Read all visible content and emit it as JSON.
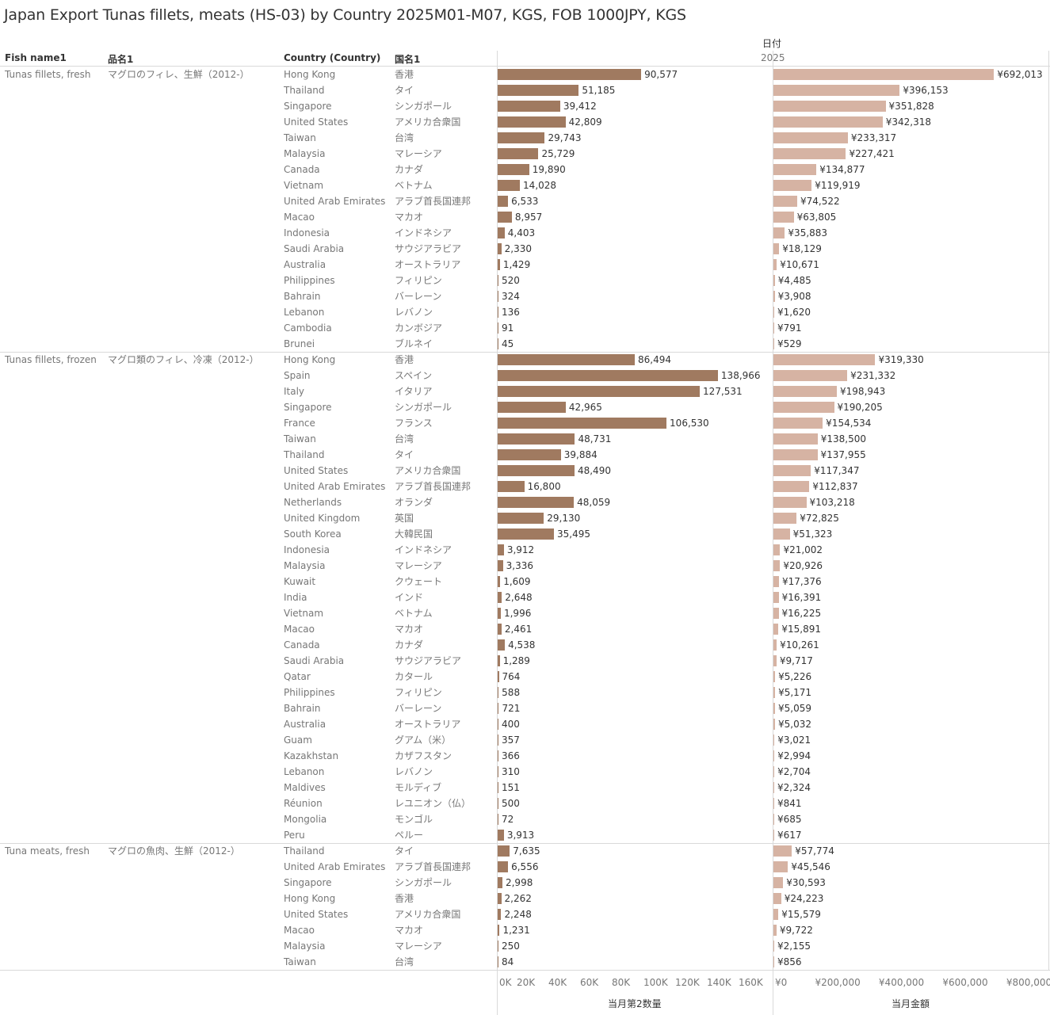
{
  "title": "Japan Export Tunas fillets, meats (HS-03) by Country 2025M01-M07, KGS, FOB 1000JPY, KGS",
  "headers": {
    "fish_name": "Fish name1",
    "item_name": "品名1",
    "country": "Country (Country)",
    "country_jp": "国名1",
    "date": "日付",
    "year": "2025"
  },
  "chart_data": {
    "type": "bar",
    "orientation": "horizontal",
    "grid": false,
    "quantity_axis": {
      "title": "当月第2数量",
      "range": [
        0,
        172000
      ],
      "ticks": [
        0,
        20000,
        40000,
        60000,
        80000,
        100000,
        120000,
        140000,
        160000
      ],
      "tick_labels": [
        "0K",
        "20K",
        "40K",
        "60K",
        "80K",
        "100K",
        "120K",
        "140K",
        "160K"
      ]
    },
    "value_axis": {
      "title": "当月金額",
      "range": [
        0,
        860000
      ],
      "ticks": [
        0,
        200000,
        400000,
        600000,
        800000
      ],
      "tick_labels": [
        "¥0",
        "¥200,000",
        "¥400,000",
        "¥600,000",
        "¥800,000"
      ]
    },
    "groups": [
      {
        "fish_name": "Tunas fillets, fresh",
        "item_name": "マグロのフィレ、生鮮（2012-）",
        "rows": [
          {
            "country": "Hong Kong",
            "country_jp": "香港",
            "quantity": 90577,
            "value": 692013
          },
          {
            "country": "Thailand",
            "country_jp": "タイ",
            "quantity": 51185,
            "value": 396153
          },
          {
            "country": "Singapore",
            "country_jp": "シンガポール",
            "quantity": 39412,
            "value": 351828
          },
          {
            "country": "United States",
            "country_jp": "アメリカ合衆国",
            "quantity": 42809,
            "value": 342318
          },
          {
            "country": "Taiwan",
            "country_jp": "台湾",
            "quantity": 29743,
            "value": 233317
          },
          {
            "country": "Malaysia",
            "country_jp": "マレーシア",
            "quantity": 25729,
            "value": 227421
          },
          {
            "country": "Canada",
            "country_jp": "カナダ",
            "quantity": 19890,
            "value": 134877
          },
          {
            "country": "Vietnam",
            "country_jp": "ベトナム",
            "quantity": 14028,
            "value": 119919
          },
          {
            "country": "United Arab Emirates",
            "country_jp": "アラブ首長国連邦",
            "quantity": 6533,
            "value": 74522
          },
          {
            "country": "Macao",
            "country_jp": "マカオ",
            "quantity": 8957,
            "value": 63805
          },
          {
            "country": "Indonesia",
            "country_jp": "インドネシア",
            "quantity": 4403,
            "value": 35883
          },
          {
            "country": "Saudi Arabia",
            "country_jp": "サウジアラビア",
            "quantity": 2330,
            "value": 18129
          },
          {
            "country": "Australia",
            "country_jp": "オーストラリア",
            "quantity": 1429,
            "value": 10671
          },
          {
            "country": "Philippines",
            "country_jp": "フィリピン",
            "quantity": 520,
            "value": 4485
          },
          {
            "country": "Bahrain",
            "country_jp": "バーレーン",
            "quantity": 324,
            "value": 3908
          },
          {
            "country": "Lebanon",
            "country_jp": "レバノン",
            "quantity": 136,
            "value": 1620
          },
          {
            "country": "Cambodia",
            "country_jp": "カンボジア",
            "quantity": 91,
            "value": 791
          },
          {
            "country": "Brunei",
            "country_jp": "ブルネイ",
            "quantity": 45,
            "value": 529
          }
        ]
      },
      {
        "fish_name": "Tunas fillets, frozen",
        "item_name": "マグロ類のフィレ、冷凍（2012-）",
        "rows": [
          {
            "country": "Hong Kong",
            "country_jp": "香港",
            "quantity": 86494,
            "value": 319330
          },
          {
            "country": "Spain",
            "country_jp": "スペイン",
            "quantity": 138966,
            "value": 231332
          },
          {
            "country": "Italy",
            "country_jp": "イタリア",
            "quantity": 127531,
            "value": 198943
          },
          {
            "country": "Singapore",
            "country_jp": "シンガポール",
            "quantity": 42965,
            "value": 190205
          },
          {
            "country": "France",
            "country_jp": "フランス",
            "quantity": 106530,
            "value": 154534
          },
          {
            "country": "Taiwan",
            "country_jp": "台湾",
            "quantity": 48731,
            "value": 138500
          },
          {
            "country": "Thailand",
            "country_jp": "タイ",
            "quantity": 39884,
            "value": 137955
          },
          {
            "country": "United States",
            "country_jp": "アメリカ合衆国",
            "quantity": 48490,
            "value": 117347
          },
          {
            "country": "United Arab Emirates",
            "country_jp": "アラブ首長国連邦",
            "quantity": 16800,
            "value": 112837
          },
          {
            "country": "Netherlands",
            "country_jp": "オランダ",
            "quantity": 48059,
            "value": 103218
          },
          {
            "country": "United Kingdom",
            "country_jp": "英国",
            "quantity": 29130,
            "value": 72825
          },
          {
            "country": "South Korea",
            "country_jp": "大韓民国",
            "quantity": 35495,
            "value": 51323
          },
          {
            "country": "Indonesia",
            "country_jp": "インドネシア",
            "quantity": 3912,
            "value": 21002
          },
          {
            "country": "Malaysia",
            "country_jp": "マレーシア",
            "quantity": 3336,
            "value": 20926
          },
          {
            "country": "Kuwait",
            "country_jp": "クウェート",
            "quantity": 1609,
            "value": 17376
          },
          {
            "country": "India",
            "country_jp": "インド",
            "quantity": 2648,
            "value": 16391
          },
          {
            "country": "Vietnam",
            "country_jp": "ベトナム",
            "quantity": 1996,
            "value": 16225
          },
          {
            "country": "Macao",
            "country_jp": "マカオ",
            "quantity": 2461,
            "value": 15891
          },
          {
            "country": "Canada",
            "country_jp": "カナダ",
            "quantity": 4538,
            "value": 10261
          },
          {
            "country": "Saudi Arabia",
            "country_jp": "サウジアラビア",
            "quantity": 1289,
            "value": 9717
          },
          {
            "country": "Qatar",
            "country_jp": "カタール",
            "quantity": 764,
            "value": 5226
          },
          {
            "country": "Philippines",
            "country_jp": "フィリピン",
            "quantity": 588,
            "value": 5171
          },
          {
            "country": "Bahrain",
            "country_jp": "バーレーン",
            "quantity": 721,
            "value": 5059
          },
          {
            "country": "Australia",
            "country_jp": "オーストラリア",
            "quantity": 400,
            "value": 5032
          },
          {
            "country": "Guam",
            "country_jp": "グアム（米）",
            "quantity": 357,
            "value": 3021
          },
          {
            "country": "Kazakhstan",
            "country_jp": "カザフスタン",
            "quantity": 366,
            "value": 2994
          },
          {
            "country": "Lebanon",
            "country_jp": "レバノン",
            "quantity": 310,
            "value": 2704
          },
          {
            "country": "Maldives",
            "country_jp": "モルディブ",
            "quantity": 151,
            "value": 2324
          },
          {
            "country": "Réunion",
            "country_jp": "レユニオン（仏）",
            "quantity": 500,
            "value": 841
          },
          {
            "country": "Mongolia",
            "country_jp": "モンゴル",
            "quantity": 72,
            "value": 685
          },
          {
            "country": "Peru",
            "country_jp": "ペルー",
            "quantity": 3913,
            "value": 617
          }
        ]
      },
      {
        "fish_name": "Tuna meats, fresh",
        "item_name": "マグロの魚肉、生鮮（2012-）",
        "rows": [
          {
            "country": "Thailand",
            "country_jp": "タイ",
            "quantity": 7635,
            "value": 57774
          },
          {
            "country": "United Arab Emirates",
            "country_jp": "アラブ首長国連邦",
            "quantity": 6556,
            "value": 45546
          },
          {
            "country": "Singapore",
            "country_jp": "シンガポール",
            "quantity": 2998,
            "value": 30593
          },
          {
            "country": "Hong Kong",
            "country_jp": "香港",
            "quantity": 2262,
            "value": 24223
          },
          {
            "country": "United States",
            "country_jp": "アメリカ合衆国",
            "quantity": 2248,
            "value": 15579
          },
          {
            "country": "Macao",
            "country_jp": "マカオ",
            "quantity": 1231,
            "value": 9722
          },
          {
            "country": "Malaysia",
            "country_jp": "マレーシア",
            "quantity": 250,
            "value": 2155
          },
          {
            "country": "Taiwan",
            "country_jp": "台湾",
            "quantity": 84,
            "value": 856
          }
        ]
      }
    ]
  }
}
